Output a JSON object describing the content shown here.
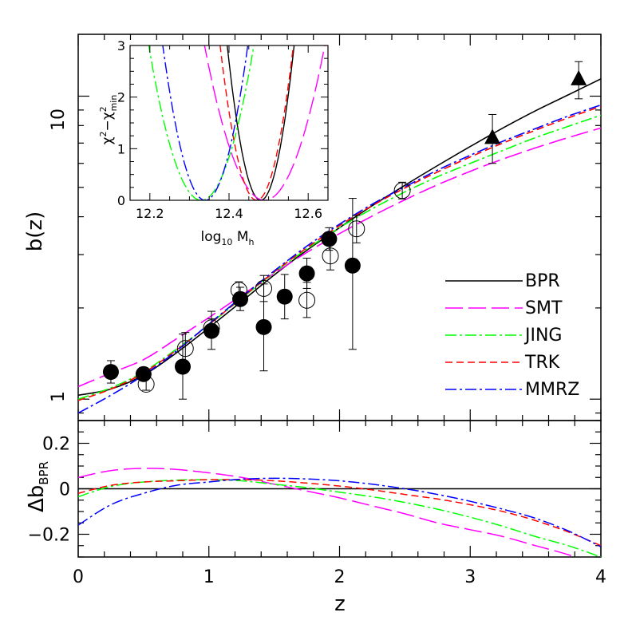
{
  "chart_data": [
    {
      "type": "line",
      "panel": "main",
      "xlabel": "z",
      "ylabel": "b(z)",
      "xlim": [
        0,
        4
      ],
      "ylim": [
        0.85,
        16
      ],
      "yscale": "log",
      "y_ticks_labeled": [
        1,
        10
      ],
      "legend_position": "right",
      "series": [
        {
          "name": "BPR",
          "color": "#000000",
          "dash": "solid",
          "x": [
            0,
            0.25,
            0.5,
            0.75,
            1,
            1.25,
            1.5,
            1.75,
            2,
            2.25,
            2.5,
            2.75,
            3,
            3.25,
            3.5,
            3.75,
            4
          ],
          "y": [
            1.03,
            1.08,
            1.2,
            1.42,
            1.72,
            2.1,
            2.57,
            3.1,
            3.68,
            4.35,
            5.08,
            5.9,
            6.82,
            7.85,
            8.95,
            10.1,
            11.4
          ]
        },
        {
          "name": "SMT",
          "color": "#ff00ff",
          "dash": "long",
          "x": [
            0,
            0.25,
            0.5,
            0.75,
            1,
            1.25,
            1.5,
            1.75,
            2,
            2.25,
            2.5,
            2.75,
            3,
            3.25,
            3.5,
            3.75,
            4
          ],
          "y": [
            1.1,
            1.22,
            1.35,
            1.58,
            1.86,
            2.2,
            2.6,
            3.05,
            3.52,
            4.02,
            4.55,
            5.1,
            5.65,
            6.2,
            6.75,
            7.3,
            7.85
          ]
        },
        {
          "name": "JING",
          "color": "#00ff00",
          "dash": "dotdash",
          "x": [
            0,
            0.25,
            0.5,
            0.75,
            1,
            1.25,
            1.5,
            1.75,
            2,
            2.25,
            2.5,
            2.75,
            3,
            3.25,
            3.5,
            3.75,
            4
          ],
          "y": [
            1.0,
            1.09,
            1.23,
            1.46,
            1.76,
            2.15,
            2.62,
            3.13,
            3.68,
            4.25,
            4.83,
            5.42,
            6.0,
            6.62,
            7.3,
            7.95,
            8.65
          ]
        },
        {
          "name": "TRK",
          "color": "#ff0000",
          "dash": "short",
          "x": [
            0,
            0.25,
            0.5,
            0.75,
            1,
            1.25,
            1.5,
            1.75,
            2,
            2.25,
            2.5,
            2.75,
            3,
            3.25,
            3.5,
            3.75,
            4
          ],
          "y": [
            0.99,
            1.08,
            1.22,
            1.45,
            1.76,
            2.16,
            2.63,
            3.16,
            3.74,
            4.35,
            4.98,
            5.62,
            6.3,
            7.0,
            7.72,
            8.48,
            9.25
          ]
        },
        {
          "name": "MMRZ",
          "color": "#0000ff",
          "dash": "dotdash",
          "x": [
            0,
            0.25,
            0.5,
            0.75,
            1,
            1.25,
            1.5,
            1.75,
            2,
            2.25,
            2.5,
            2.75,
            3,
            3.25,
            3.5,
            3.75,
            4
          ],
          "y": [
            0.9,
            1.03,
            1.2,
            1.44,
            1.77,
            2.17,
            2.65,
            3.2,
            3.78,
            4.4,
            5.02,
            5.7,
            6.38,
            7.1,
            7.82,
            8.6,
            9.35
          ]
        }
      ],
      "points_filled_circle": [
        {
          "x": 0.25,
          "y": 1.23,
          "lo": 1.13,
          "hi": 1.34
        },
        {
          "x": 0.5,
          "y": 1.21,
          "lo": 1.16,
          "hi": 1.25
        },
        {
          "x": 0.8,
          "y": 1.28,
          "lo": 1.0,
          "hi": 1.64
        },
        {
          "x": 1.02,
          "y": 1.68,
          "lo": 1.46,
          "hi": 1.95
        },
        {
          "x": 1.24,
          "y": 2.14,
          "lo": 1.96,
          "hi": 2.34
        },
        {
          "x": 1.42,
          "y": 1.73,
          "lo": 1.24,
          "hi": 2.4
        },
        {
          "x": 1.58,
          "y": 2.18,
          "lo": 1.84,
          "hi": 2.58
        },
        {
          "x": 1.75,
          "y": 2.6,
          "lo": 2.32,
          "hi": 2.92
        },
        {
          "x": 1.92,
          "y": 3.38,
          "lo": 3.1,
          "hi": 3.68
        },
        {
          "x": 2.1,
          "y": 2.76,
          "lo": 1.46,
          "hi": 4.6
        }
      ],
      "points_open_circle": [
        {
          "x": 0.52,
          "y": 1.12,
          "lo": 1.07,
          "hi": 1.17
        },
        {
          "x": 0.82,
          "y": 1.47,
          "lo": 1.28,
          "hi": 1.66
        },
        {
          "x": 1.02,
          "y": 1.72,
          "lo": 1.6,
          "hi": 1.84
        },
        {
          "x": 1.23,
          "y": 2.29,
          "lo": 2.15,
          "hi": 2.44
        },
        {
          "x": 1.42,
          "y": 2.32,
          "lo": 2.1,
          "hi": 2.56
        },
        {
          "x": 1.75,
          "y": 2.12,
          "lo": 1.86,
          "hi": 2.43
        },
        {
          "x": 1.93,
          "y": 2.97,
          "lo": 2.67,
          "hi": 3.3
        },
        {
          "x": 2.13,
          "y": 3.65,
          "lo": 3.28,
          "hi": 4.04
        },
        {
          "x": 2.48,
          "y": 4.88,
          "lo": 4.58,
          "hi": 5.2
        }
      ],
      "points_triangle": [
        {
          "x": 3.17,
          "y": 7.3,
          "lo": 6.0,
          "hi": 8.7
        },
        {
          "x": 3.83,
          "y": 11.4,
          "lo": 9.8,
          "hi": 13.0
        }
      ]
    },
    {
      "type": "line",
      "panel": "residual",
      "xlabel": "z",
      "ylabel": "Δb_BPR",
      "xlim": [
        0,
        4
      ],
      "ylim": [
        -0.3,
        0.3
      ],
      "x_ticks": [
        0,
        1,
        2,
        3,
        4
      ],
      "y_ticks": [
        -0.2,
        0,
        0.2
      ],
      "y_tick_labels": [
        "−0.2",
        "0",
        "0.2"
      ],
      "series": [
        {
          "name": "BPR",
          "color": "#000000",
          "dash": "solid",
          "x": [
            0,
            4
          ],
          "y": [
            0,
            0
          ]
        },
        {
          "name": "SMT",
          "color": "#ff00ff",
          "dash": "long",
          "x": [
            0,
            0.25,
            0.5,
            0.75,
            1,
            1.25,
            1.5,
            1.75,
            2,
            2.25,
            2.5,
            2.75,
            3,
            3.25,
            3.5,
            3.75,
            4
          ],
          "y": [
            0.05,
            0.08,
            0.09,
            0.085,
            0.07,
            0.05,
            0.02,
            -0.01,
            -0.04,
            -0.075,
            -0.11,
            -0.15,
            -0.18,
            -0.21,
            -0.25,
            -0.29,
            -0.34
          ]
        },
        {
          "name": "JING",
          "color": "#00ff00",
          "dash": "dotdash",
          "x": [
            0,
            0.25,
            0.5,
            0.75,
            1,
            1.25,
            1.5,
            1.75,
            2,
            2.25,
            2.5,
            2.75,
            3,
            3.25,
            3.5,
            3.75,
            4
          ],
          "y": [
            -0.035,
            0.01,
            0.03,
            0.038,
            0.04,
            0.035,
            0.02,
            0.005,
            -0.015,
            -0.035,
            -0.06,
            -0.09,
            -0.125,
            -0.165,
            -0.21,
            -0.25,
            -0.3
          ]
        },
        {
          "name": "TRK",
          "color": "#ff0000",
          "dash": "short",
          "x": [
            0,
            0.25,
            0.5,
            0.75,
            1,
            1.25,
            1.5,
            1.75,
            2,
            2.25,
            2.5,
            2.75,
            3,
            3.25,
            3.5,
            3.75,
            4
          ],
          "y": [
            -0.02,
            0.015,
            0.03,
            0.035,
            0.04,
            0.04,
            0.035,
            0.025,
            0.012,
            -0.005,
            -0.025,
            -0.045,
            -0.07,
            -0.1,
            -0.14,
            -0.19,
            -0.25
          ]
        },
        {
          "name": "MMRZ",
          "color": "#0000ff",
          "dash": "dotdash",
          "x": [
            0,
            0.25,
            0.5,
            0.75,
            1,
            1.25,
            1.5,
            1.75,
            2,
            2.25,
            2.5,
            2.75,
            3,
            3.25,
            3.5,
            3.75,
            4
          ],
          "y": [
            -0.16,
            -0.07,
            -0.02,
            0.015,
            0.03,
            0.042,
            0.046,
            0.043,
            0.035,
            0.02,
            0.0,
            -0.025,
            -0.055,
            -0.09,
            -0.13,
            -0.185,
            -0.255
          ]
        }
      ]
    },
    {
      "type": "line",
      "panel": "inset",
      "xlabel": "log10 Mh",
      "ylabel": "χ²−χ²min",
      "xlim": [
        12.15,
        12.65
      ],
      "ylim": [
        0,
        3
      ],
      "x_ticks": [
        12.2,
        12.4,
        12.6
      ],
      "x_tick_labels": [
        "12.2",
        "12.4",
        "12.6"
      ],
      "y_ticks": [
        0,
        1,
        2,
        3
      ],
      "series": [
        {
          "name": "BPR",
          "color": "#000000",
          "dash": "solid",
          "center": 12.48,
          "curvature": 420
        },
        {
          "name": "SMT",
          "color": "#ff00ff",
          "dash": "long",
          "center": 12.49,
          "curvature": 130
        },
        {
          "name": "JING",
          "color": "#00ff00",
          "dash": "dotdash",
          "center": 12.33,
          "curvature": 170
        },
        {
          "name": "TRK",
          "color": "#ff0000",
          "dash": "short",
          "center": 12.47,
          "curvature": 350
        },
        {
          "name": "MMRZ",
          "color": "#0000ff",
          "dash": "dotdash",
          "center": 12.34,
          "curvature": 260
        }
      ]
    }
  ],
  "labels": {
    "main_ylabel": "b(z)",
    "resid_ylabel_main": "Δb",
    "resid_ylabel_sub": "BPR",
    "xlabel": "z",
    "inset_xlabel_main": "log",
    "inset_xlabel_sub": "10",
    "inset_xlabel_var": " M",
    "inset_xlabel_var_sub": "h",
    "inset_ylabel_a": "χ",
    "inset_ylabel_a_sup": "2",
    "inset_ylabel_minus": "−χ",
    "inset_ylabel_b_sup": "2",
    "inset_ylabel_b_sub": "min",
    "tick_1": "1",
    "tick_10": "10"
  }
}
